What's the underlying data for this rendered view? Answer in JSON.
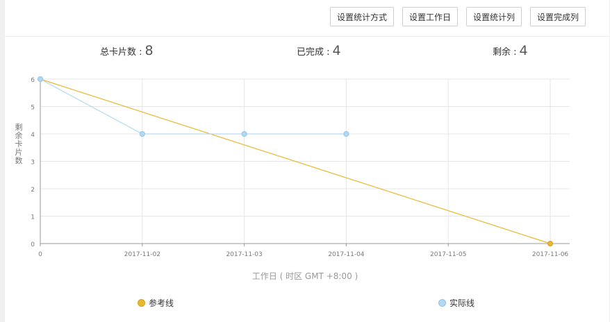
{
  "toolbar": {
    "buttons": [
      {
        "label": "设置统计方式",
        "name": "set-stat-mode-button"
      },
      {
        "label": "设置工作日",
        "name": "set-workday-button"
      },
      {
        "label": "设置统计列",
        "name": "set-stat-column-button"
      },
      {
        "label": "设置完成列",
        "name": "set-done-column-button"
      }
    ]
  },
  "stats": {
    "total_label": "总卡片数 :",
    "total_value": "8",
    "done_label": "已完成 :",
    "done_value": "4",
    "remaining_label": "剩余 :",
    "remaining_value": "4"
  },
  "chart_data": {
    "type": "line",
    "ylabel": "剩余卡片数",
    "xlabel": "工作日 ( 时区 GMT +8:00 )",
    "categories": [
      "0",
      "2017-11-02",
      "2017-11-03",
      "2017-11-04",
      "2017-11-05",
      "2017-11-06"
    ],
    "ylim": [
      0,
      6
    ],
    "yticks": [
      "0",
      "1",
      "2",
      "3",
      "4",
      "5",
      "6"
    ],
    "grid": true,
    "series": [
      {
        "name": "参考线",
        "color": "#e8b830",
        "values": [
          6,
          null,
          null,
          null,
          null,
          0
        ],
        "style": "straight-reference"
      },
      {
        "name": "实际线",
        "color": "#a9d3f0",
        "values": [
          6,
          4,
          4,
          4,
          null,
          null
        ],
        "style": "actual"
      }
    ],
    "legend_position": "bottom"
  },
  "colors": {
    "reference": "#e8b830",
    "reference_border": "#d4a21f",
    "actual": "#b3d9f2",
    "actual_border": "#8ec3ea",
    "grid": "#e6e6e6",
    "axis": "#999999",
    "tick_text": "#777777"
  }
}
